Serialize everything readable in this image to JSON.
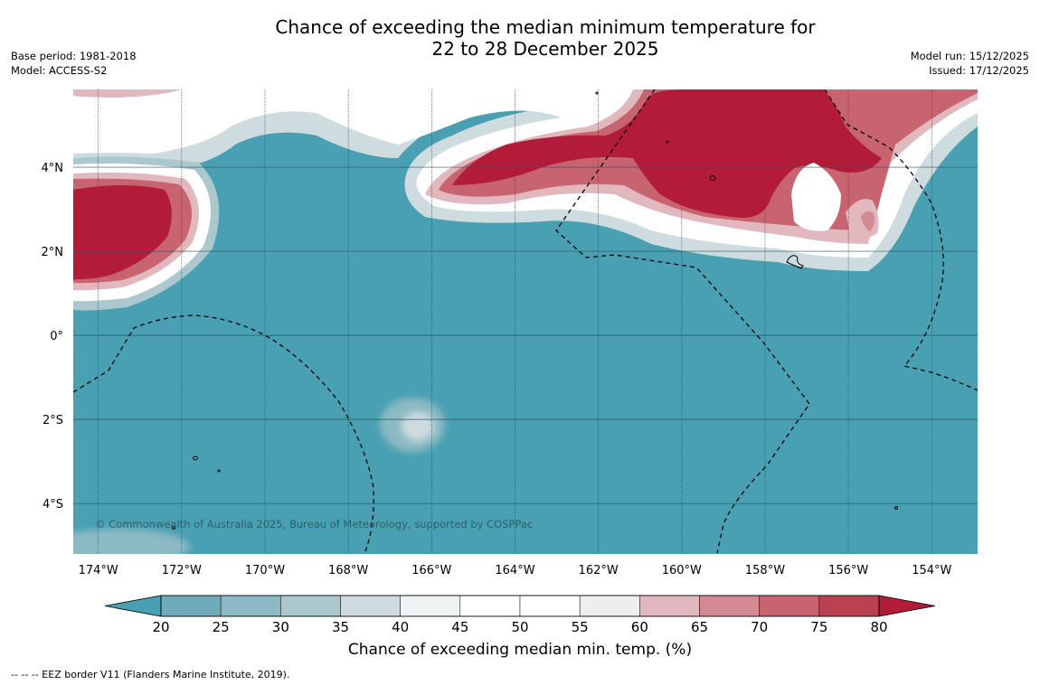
{
  "title": {
    "line1": "Chance of exceeding the median minimum temperature for",
    "line2": "22 to 28 December 2025"
  },
  "meta_left": {
    "base_period": "Base period: 1981-2018",
    "model": "Model: ACCESS-S2"
  },
  "meta_right": {
    "model_run": "Model run: 15/12/2025",
    "issued": "Issued: 17/12/2025"
  },
  "map": {
    "lon_range": [
      -174.6,
      -152.9
    ],
    "lat_range": [
      -5.2,
      5.85
    ],
    "lon_ticks": [
      "174°W",
      "172°W",
      "170°W",
      "168°W",
      "166°W",
      "164°W",
      "162°W",
      "160°W",
      "158°W",
      "156°W",
      "154°W"
    ],
    "lon_tick_values": [
      -174,
      -172,
      -170,
      -168,
      -166,
      -164,
      -162,
      -160,
      -158,
      -156,
      -154
    ],
    "lat_ticks": [
      "4°N",
      "2°N",
      "0°",
      "2°S",
      "4°S"
    ],
    "lat_tick_values": [
      4,
      2,
      0,
      -2,
      -4
    ],
    "copyright": "© Commonwealth of Australia 2025, Bureau of Meteorology, supported by COSPPac",
    "base_color": "#48a0b2",
    "grid": true,
    "border_style": "dashed"
  },
  "colorbar": {
    "label": "Chance of exceeding median min. temp. (%)",
    "ticks": [
      "20",
      "25",
      "30",
      "35",
      "40",
      "45",
      "50",
      "55",
      "60",
      "65",
      "70",
      "75",
      "80"
    ],
    "colors": [
      "#48a0b2",
      "#6eacba",
      "#8cbac4",
      "#abc8ce",
      "#cfdcdf",
      "#eef2f3",
      "#ffffff",
      "#ffffff",
      "#efeeee",
      "#e1b8bd",
      "#d48a93",
      "#c7646f",
      "#bb4150",
      "#b21c38"
    ]
  },
  "footnote": "--  --  -- EEZ border V11 (Flanders Marine Institute, 2019)."
}
